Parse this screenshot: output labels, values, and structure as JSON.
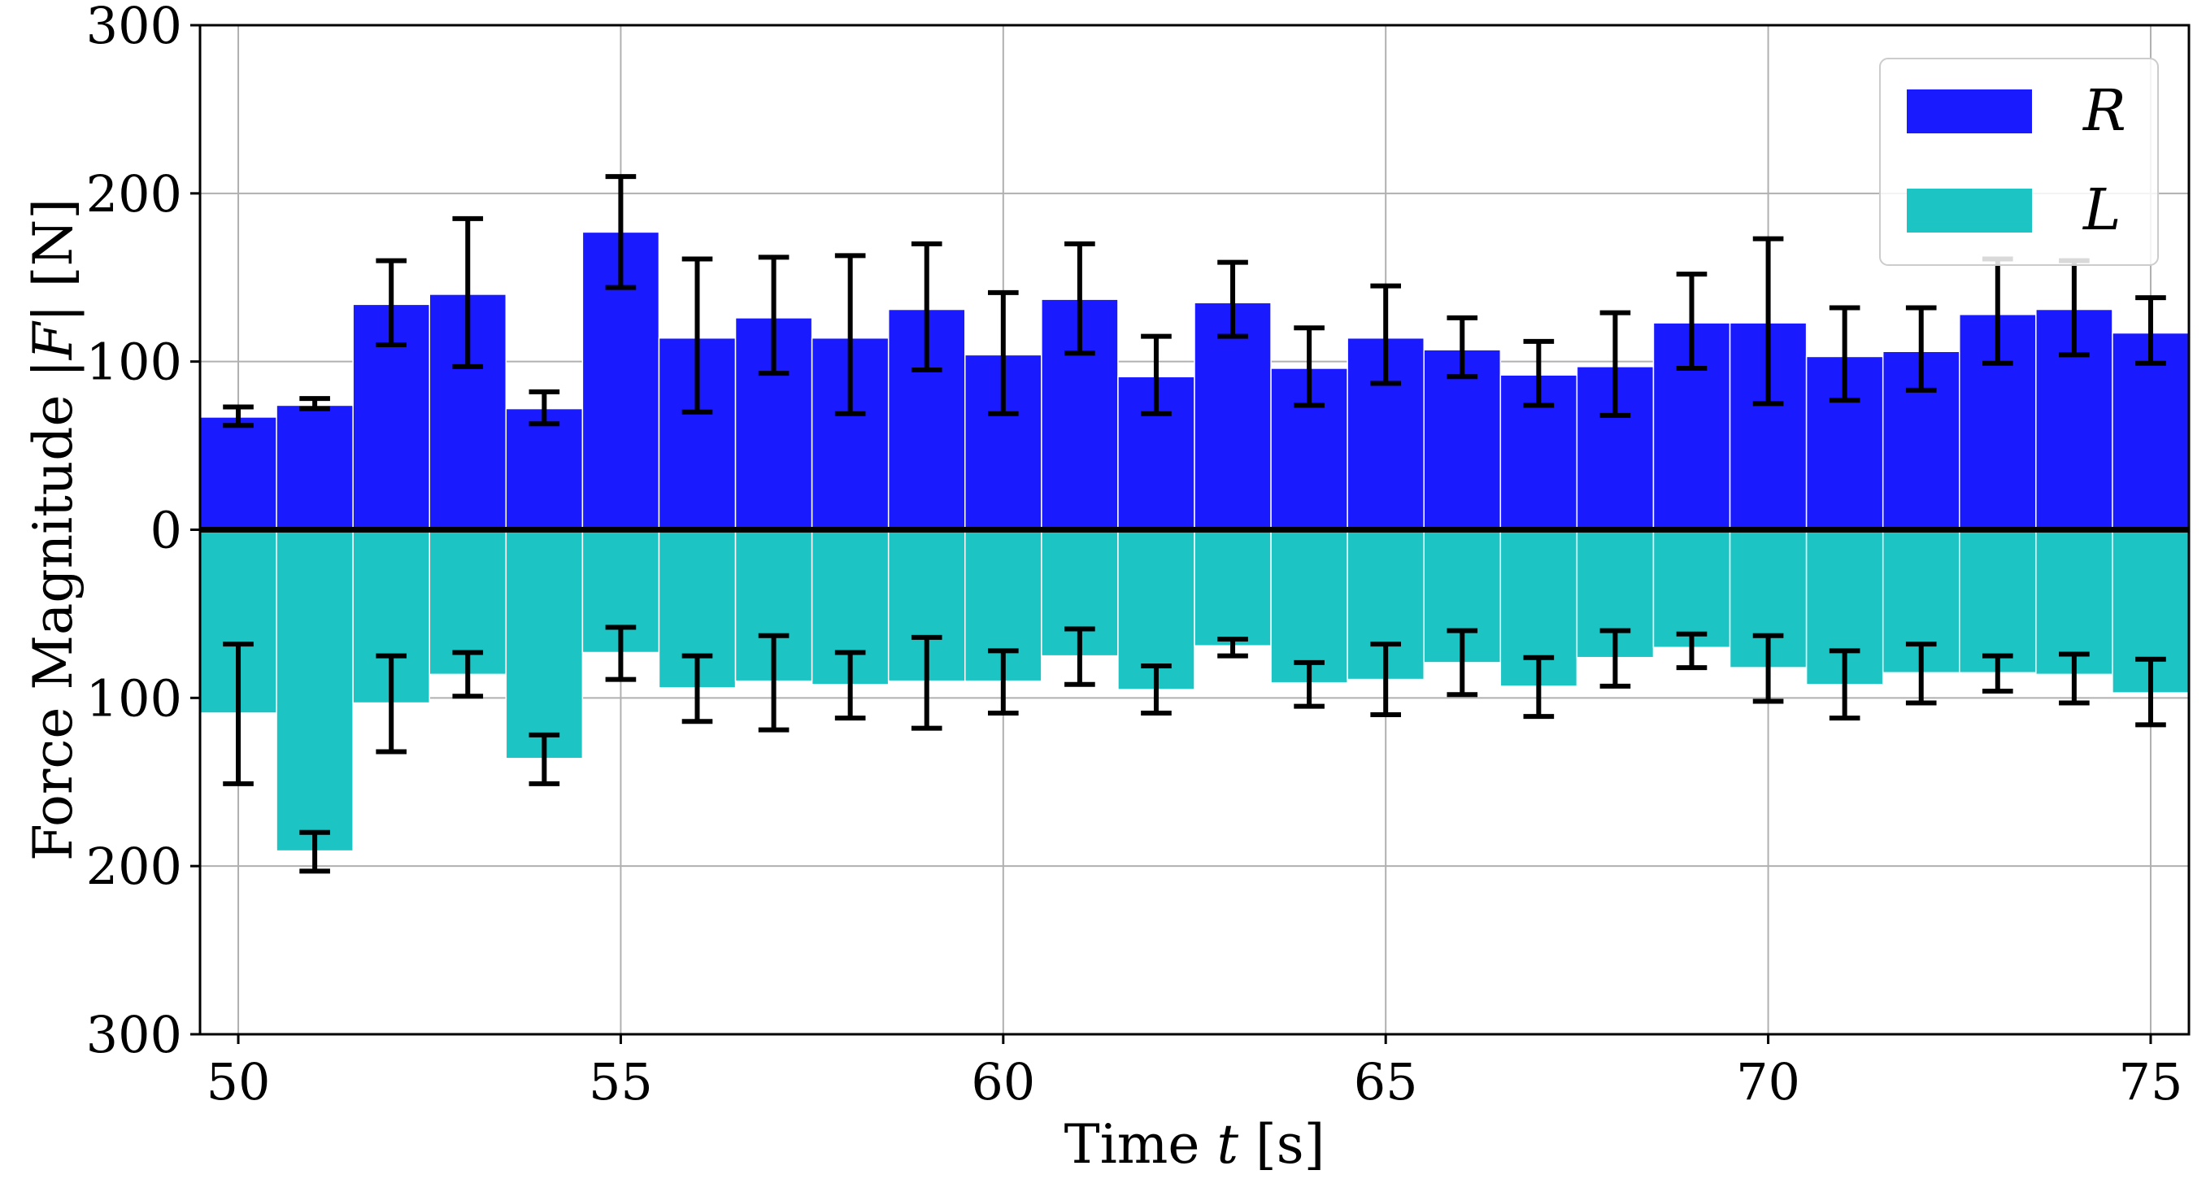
{
  "chart_data": {
    "type": "bar",
    "orientation": "mirrored-vertical",
    "title": "",
    "xlabel": {
      "prefix": "Time ",
      "var": "t",
      "suffix": " [s]"
    },
    "ylabel": {
      "prefix": "Force Magnitude |",
      "var": "F",
      "suffix": "| [N]"
    },
    "xlim": [
      49.5,
      75.5
    ],
    "ylim": [
      -300,
      300
    ],
    "x_ticks": [
      50,
      55,
      60,
      65,
      70,
      75
    ],
    "y_ticks": [
      {
        "value": 300,
        "label": "300"
      },
      {
        "value": 200,
        "label": "200"
      },
      {
        "value": 100,
        "label": "100"
      },
      {
        "value": 0,
        "label": "0"
      },
      {
        "value": -100,
        "label": "100"
      },
      {
        "value": -200,
        "label": "200"
      },
      {
        "value": -300,
        "label": "300"
      }
    ],
    "grid": true,
    "bar_width": 1.0,
    "x": [
      50,
      51,
      52,
      53,
      54,
      55,
      56,
      57,
      58,
      59,
      60,
      61,
      62,
      63,
      64,
      65,
      66,
      67,
      68,
      69,
      70,
      71,
      72,
      73,
      74,
      75
    ],
    "series": [
      {
        "name": "R",
        "color": "#1a1aff",
        "direction": "up",
        "values": [
          67,
          74,
          134,
          140,
          72,
          177,
          114,
          126,
          114,
          131,
          104,
          137,
          91,
          135,
          96,
          114,
          107,
          92,
          97,
          123,
          123,
          103,
          106,
          128,
          131,
          117
        ],
        "errors": [
          [
            62,
            73
          ],
          [
            72,
            78
          ],
          [
            110,
            160
          ],
          [
            97,
            185
          ],
          [
            63,
            82
          ],
          [
            144,
            210
          ],
          [
            70,
            161
          ],
          [
            93,
            162
          ],
          [
            69,
            163
          ],
          [
            95,
            170
          ],
          [
            69,
            141
          ],
          [
            105,
            170
          ],
          [
            69,
            115
          ],
          [
            115,
            159
          ],
          [
            74,
            120
          ],
          [
            87,
            145
          ],
          [
            91,
            126
          ],
          [
            74,
            112
          ],
          [
            68,
            129
          ],
          [
            96,
            152
          ],
          [
            75,
            173
          ],
          [
            77,
            132
          ],
          [
            83,
            132
          ],
          [
            99,
            161
          ],
          [
            104,
            160
          ],
          [
            99,
            138
          ]
        ]
      },
      {
        "name": "L",
        "color": "#1cc4c4",
        "direction": "down",
        "values": [
          109,
          191,
          103,
          86,
          136,
          73,
          94,
          90,
          92,
          90,
          90,
          75,
          95,
          69,
          91,
          89,
          79,
          93,
          76,
          70,
          82,
          92,
          85,
          85,
          86,
          97
        ],
        "errors": [
          [
            68,
            151
          ],
          [
            180,
            203
          ],
          [
            75,
            132
          ],
          [
            73,
            99
          ],
          [
            122,
            151
          ],
          [
            58,
            89
          ],
          [
            75,
            114
          ],
          [
            63,
            119
          ],
          [
            73,
            112
          ],
          [
            64,
            118
          ],
          [
            72,
            109
          ],
          [
            59,
            92
          ],
          [
            81,
            109
          ],
          [
            65,
            75
          ],
          [
            79,
            105
          ],
          [
            68,
            110
          ],
          [
            60,
            98
          ],
          [
            76,
            111
          ],
          [
            60,
            93
          ],
          [
            62,
            82
          ],
          [
            63,
            102
          ],
          [
            72,
            112
          ],
          [
            68,
            103
          ],
          [
            75,
            96
          ],
          [
            74,
            103
          ],
          [
            77,
            116
          ]
        ]
      }
    ],
    "legend": {
      "placement": "top-right",
      "entries": [
        {
          "label": "R",
          "color": "#1a1aff"
        },
        {
          "label": "L",
          "color": "#1cc4c4"
        }
      ]
    }
  }
}
